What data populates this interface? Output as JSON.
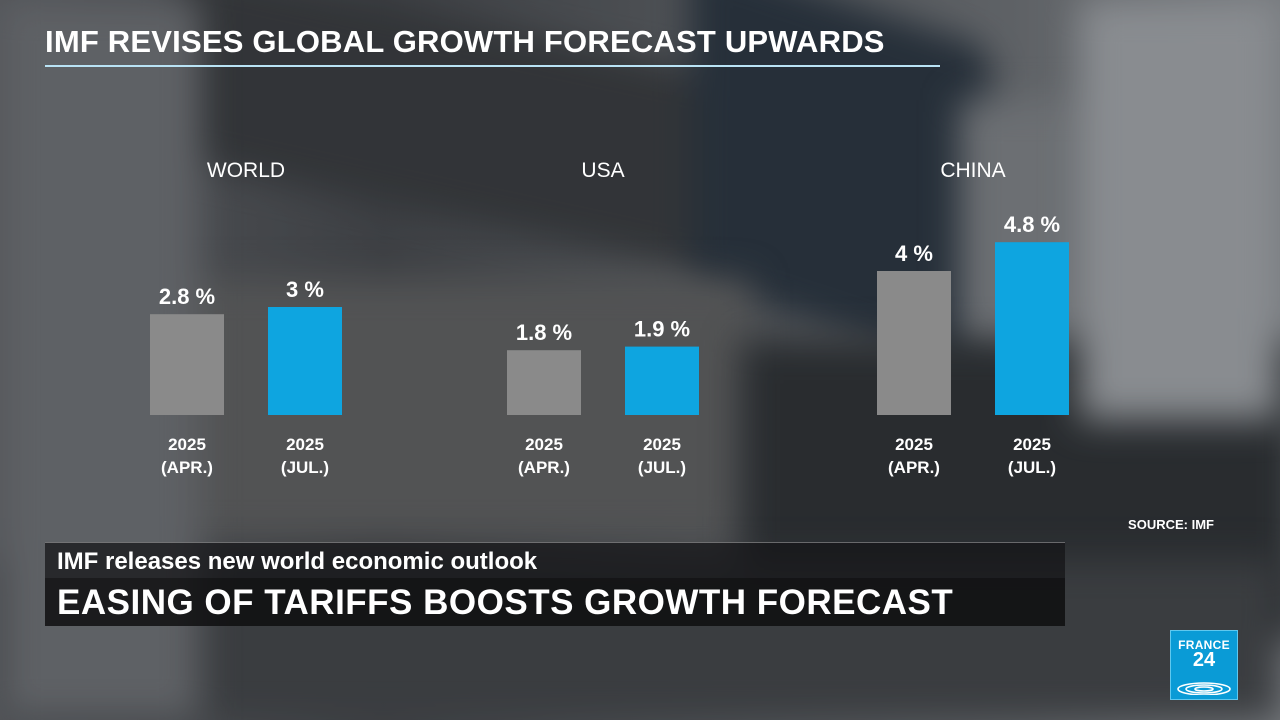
{
  "title": "IMF REVISES GLOBAL GROWTH FORECAST UPWARDS",
  "source": "SOURCE: IMF",
  "lower_third": {
    "subtitle": "IMF releases new world economic outlook",
    "headline": "EASING OF TARIFFS BOOSTS GROWTH FORECAST"
  },
  "logo": {
    "line1": "FRANCE",
    "line2": "24"
  },
  "colors": {
    "apr": "#8a8a8a",
    "jul": "#0ea5e0",
    "rule": "#b9e3f5",
    "logo": "#0a9bd6"
  },
  "chart_data": {
    "type": "bar",
    "title": "IMF REVISES GLOBAL GROWTH FORECAST UPWARDS",
    "ylim": [
      0,
      5
    ],
    "grid": false,
    "groups": [
      {
        "name": "WORLD",
        "bars": [
          {
            "line1": "2025",
            "line2": "(APR.)",
            "value": 2.8,
            "label": "2.8 %",
            "color": "#8a8a8a"
          },
          {
            "line1": "2025",
            "line2": "(JUL.)",
            "value": 3.0,
            "label": "3 %",
            "color": "#0ea5e0"
          }
        ]
      },
      {
        "name": "USA",
        "bars": [
          {
            "line1": "2025",
            "line2": "(APR.)",
            "value": 1.8,
            "label": "1.8 %",
            "color": "#8a8a8a"
          },
          {
            "line1": "2025",
            "line2": "(JUL.)",
            "value": 1.9,
            "label": "1.9 %",
            "color": "#0ea5e0"
          }
        ]
      },
      {
        "name": "CHINA",
        "bars": [
          {
            "line1": "2025",
            "line2": "(APR.)",
            "value": 4.0,
            "label": "4 %",
            "color": "#8a8a8a"
          },
          {
            "line1": "2025",
            "line2": "(JUL.)",
            "value": 4.8,
            "label": "4.8 %",
            "color": "#0ea5e0"
          }
        ]
      }
    ]
  }
}
